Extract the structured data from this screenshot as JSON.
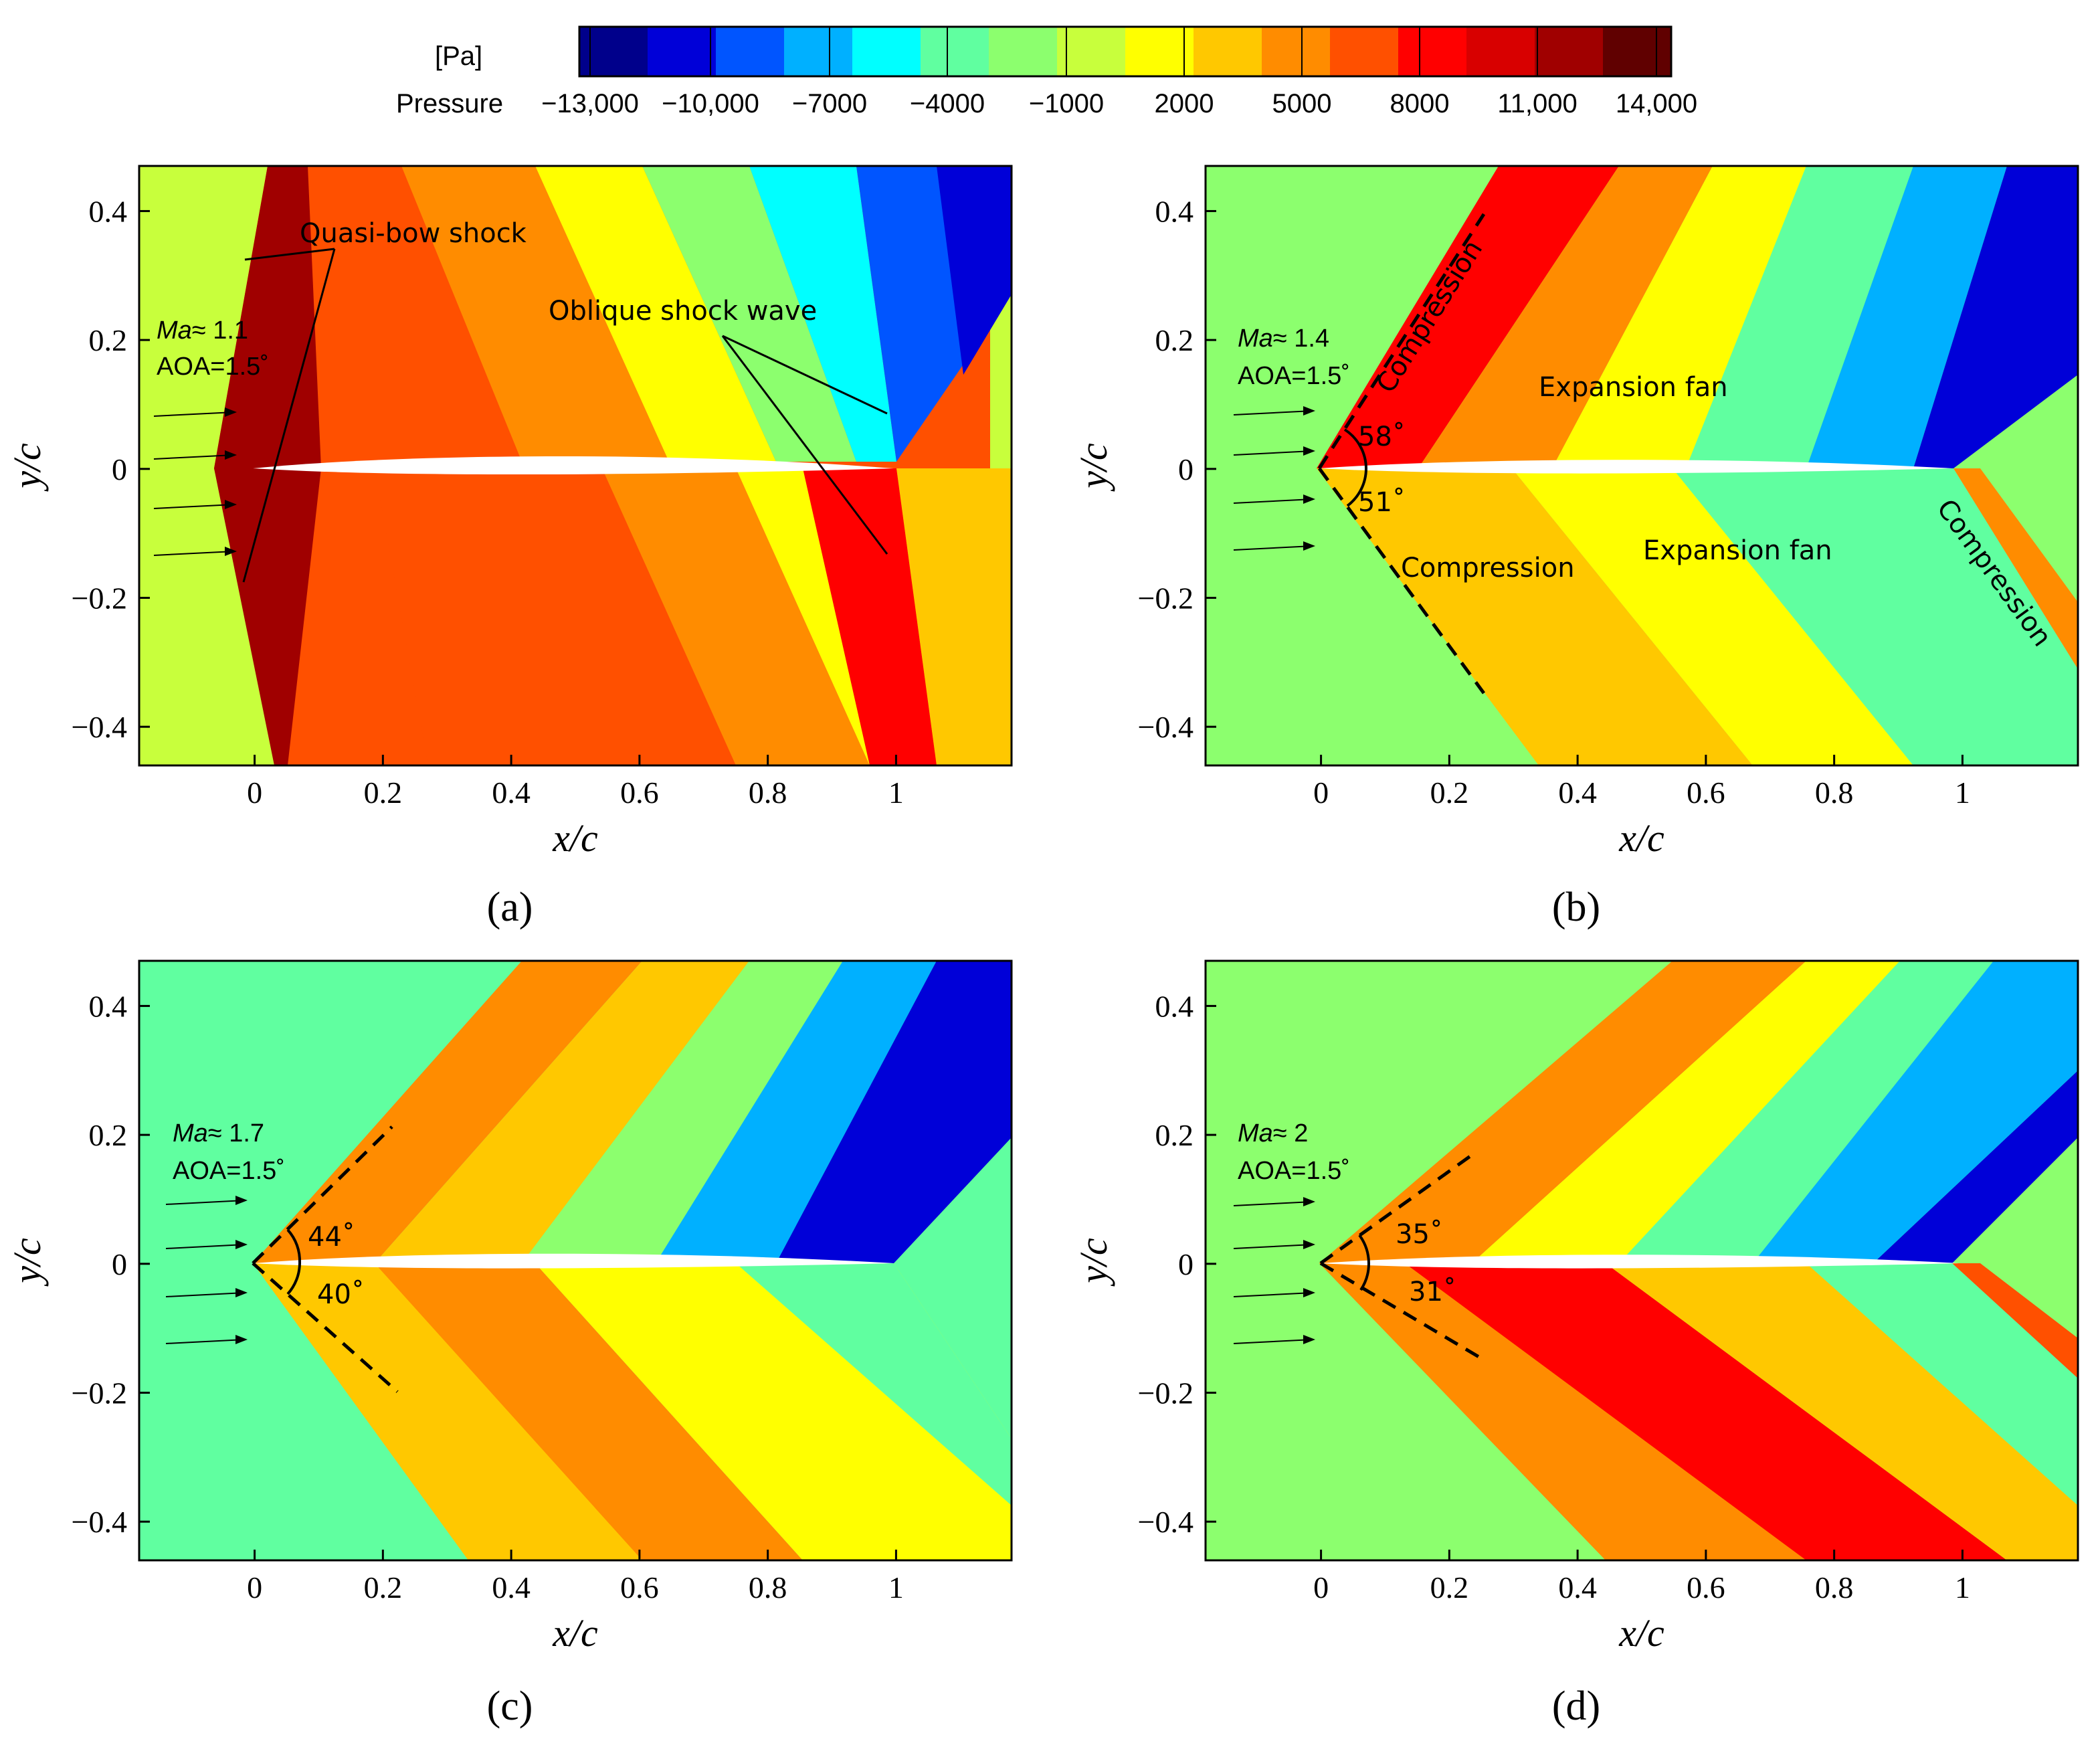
{
  "colorbar": {
    "unit": "[Pa]",
    "label": "Pressure",
    "ticks": [
      "−13,000",
      "−10,000",
      "−7000",
      "−4000",
      "−1000",
      "2000",
      "5000",
      "8000",
      "11,000",
      "14,000"
    ],
    "min": -14000,
    "max": 14000,
    "colors": [
      "#00008b",
      "#0000d8",
      "#0055ff",
      "#00b0ff",
      "#00ffff",
      "#60ffa0",
      "#8cff6e",
      "#c8ff3c",
      "#ffff00",
      "#ffc800",
      "#ff8c00",
      "#ff5000",
      "#ff0000",
      "#d80000",
      "#a00000",
      "#600000"
    ]
  },
  "chart_data": [
    {
      "type": "contour",
      "panel": "a",
      "caption": "(a)",
      "xlabel": "x/c",
      "ylabel": "y/c",
      "xlim": [
        -0.18,
        1.18
      ],
      "ylim": [
        -0.46,
        0.47
      ],
      "xticks": [
        0,
        0.2,
        0.4,
        0.6,
        0.8,
        1
      ],
      "xtick_labels": [
        "0",
        "0.2",
        "0.4",
        "0.6",
        "0.8",
        "1"
      ],
      "yticks": [
        -0.4,
        -0.2,
        0,
        0.2,
        0.4
      ],
      "ytick_labels": [
        "−0.4",
        "−0.2",
        "0",
        "0.2",
        "0.4"
      ],
      "mach_symbol": "Ma",
      "mach_text": "≈ 1.1",
      "aoa_text": "AOA=1.5˚",
      "annotations": [
        "Quasi-bow shock",
        "Oblique shock wave"
      ],
      "angles": []
    },
    {
      "type": "contour",
      "panel": "b",
      "caption": "(b)",
      "xlabel": "x/c",
      "ylabel": "y/c",
      "xlim": [
        -0.18,
        1.18
      ],
      "ylim": [
        -0.46,
        0.47
      ],
      "xticks": [
        0,
        0.2,
        0.4,
        0.6,
        0.8,
        1
      ],
      "xtick_labels": [
        "0",
        "0.2",
        "0.4",
        "0.6",
        "0.8",
        "1"
      ],
      "yticks": [
        -0.4,
        -0.2,
        0,
        0.2,
        0.4
      ],
      "ytick_labels": [
        "−0.4",
        "−0.2",
        "0",
        "0.2",
        "0.4"
      ],
      "mach_symbol": "Ma",
      "mach_text": "≈ 1.4",
      "aoa_text": "AOA=1.5˚",
      "annotations": [
        "Compression",
        "Expansion fan",
        "Compression",
        "Expansion fan",
        "Compression"
      ],
      "angles": [
        "58˚",
        "51˚"
      ]
    },
    {
      "type": "contour",
      "panel": "c",
      "caption": "(c)",
      "xlabel": "x/c",
      "ylabel": "y/c",
      "xlim": [
        -0.18,
        1.18
      ],
      "ylim": [
        -0.46,
        0.47
      ],
      "xticks": [
        0,
        0.2,
        0.4,
        0.6,
        0.8,
        1
      ],
      "xtick_labels": [
        "0",
        "0.2",
        "0.4",
        "0.6",
        "0.8",
        "1"
      ],
      "yticks": [
        -0.4,
        -0.2,
        0,
        0.2,
        0.4
      ],
      "ytick_labels": [
        "−0.4",
        "−0.2",
        "0",
        "0.2",
        "0.4"
      ],
      "mach_symbol": "Ma",
      "mach_text": "≈ 1.7",
      "aoa_text": "AOA=1.5˚",
      "annotations": [],
      "angles": [
        "44˚",
        "40˚"
      ]
    },
    {
      "type": "contour",
      "panel": "d",
      "caption": "(d)",
      "xlabel": "x/c",
      "ylabel": "y/c",
      "xlim": [
        -0.18,
        1.18
      ],
      "ylim": [
        -0.46,
        0.47
      ],
      "xticks": [
        0,
        0.2,
        0.4,
        0.6,
        0.8,
        1
      ],
      "xtick_labels": [
        "0",
        "0.2",
        "0.4",
        "0.6",
        "0.8",
        "1"
      ],
      "yticks": [
        -0.4,
        -0.2,
        0,
        0.2,
        0.4
      ],
      "ytick_labels": [
        "−0.4",
        "−0.2",
        "0",
        "0.2",
        "0.4"
      ],
      "mach_symbol": "Ma",
      "mach_text": "≈ 2",
      "aoa_text": "AOA=1.5˚",
      "annotations": [],
      "angles": [
        "35˚",
        "31˚"
      ]
    }
  ]
}
